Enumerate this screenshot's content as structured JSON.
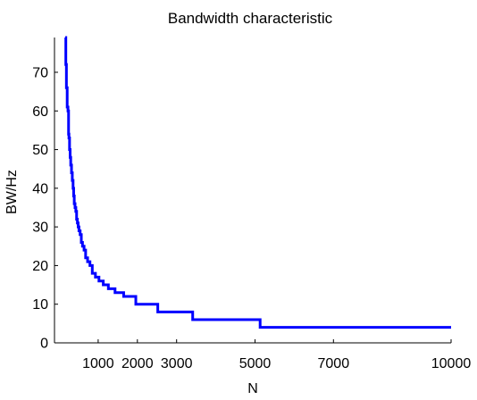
{
  "chart_data": {
    "type": "line",
    "title": "Bandwidth characteristic",
    "xlabel": "N",
    "ylabel": "BW/Hz",
    "xlim": [
      0,
      10000
    ],
    "ylim": [
      0,
      79
    ],
    "x_ticks": [
      1000,
      2000,
      3000,
      5000,
      7000,
      10000
    ],
    "x_tick_labels": [
      "1000",
      "2000",
      "3000",
      "5000",
      "7000",
      "10000"
    ],
    "y_ticks": [
      0,
      10,
      20,
      30,
      40,
      50,
      60,
      70
    ],
    "y_tick_labels": [
      "0",
      "10",
      "20",
      "30",
      "40",
      "50",
      "60",
      "70"
    ],
    "grid": false,
    "series": [
      {
        "color": "#0000ff",
        "x": [
          160,
          175,
          190,
          210,
          230,
          245,
          255,
          270,
          285,
          300,
          320,
          340,
          360,
          375,
          390,
          410,
          430,
          450,
          470,
          490,
          510,
          540,
          570,
          600,
          640,
          680,
          730,
          790,
          850,
          930,
          1020,
          1130,
          1260,
          1430,
          1650,
          1960,
          2520,
          3410,
          5130,
          10000
        ],
        "y": [
          79,
          72,
          66,
          61,
          60,
          54,
          53,
          50,
          48,
          46,
          44,
          42,
          40,
          38,
          36,
          35,
          34,
          32,
          31,
          30,
          29,
          28,
          26,
          25,
          24,
          22,
          21,
          20,
          18,
          17,
          16,
          15,
          14,
          13,
          12,
          10,
          8,
          6,
          4,
          4
        ]
      }
    ]
  }
}
